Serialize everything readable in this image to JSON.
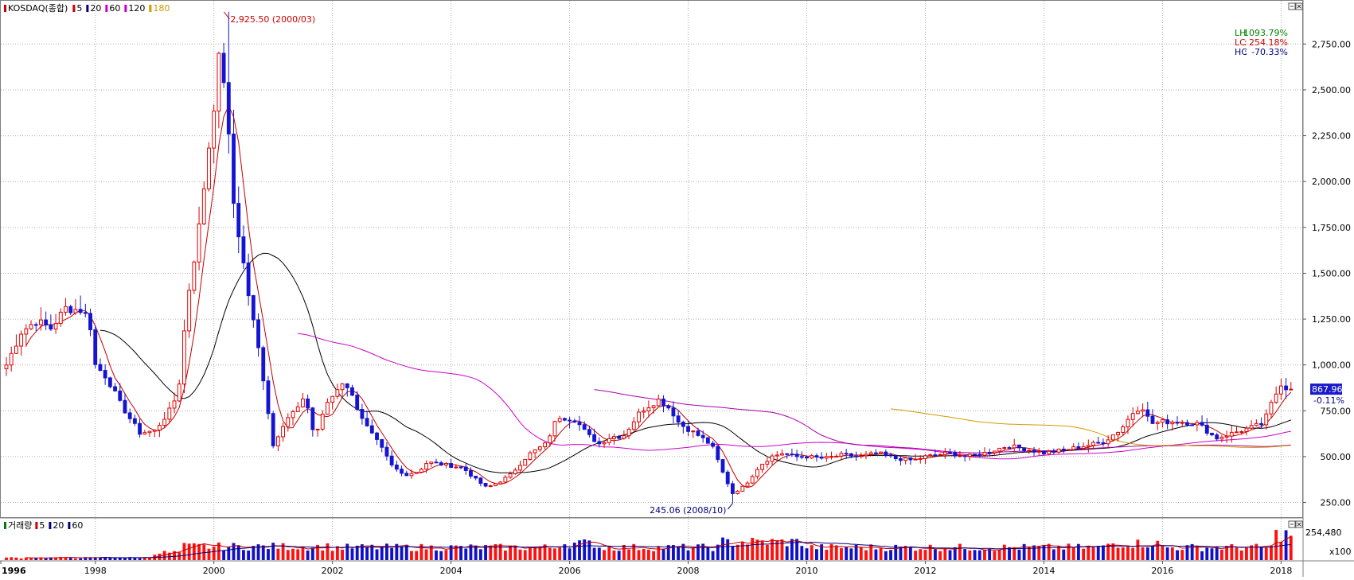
{
  "chart_data": [
    {
      "type": "candlestick",
      "index_name": "KOSDAQ(종합)",
      "legend": [
        {
          "label": "KOSDAQ(종합)",
          "color": "#cc0000"
        },
        {
          "label": "5",
          "color": "#cc0000"
        },
        {
          "label": "20",
          "color": "#000080"
        },
        {
          "label": "60",
          "color": "#cc00cc"
        },
        {
          "label": "120",
          "color": "#cc00cc"
        },
        {
          "label": "180",
          "color": "#cc9900"
        }
      ],
      "ylim": [
        170,
        2990
      ],
      "y_ticks": [
        250,
        500,
        750,
        1000,
        1250,
        1500,
        1750,
        2000,
        2250,
        2500,
        2750
      ],
      "y_tick_labels": [
        "250.00",
        "500.00",
        "750.00",
        "1,000.00",
        "1,250.00",
        "1,500.00",
        "1,750.00",
        "2,000.00",
        "2,250.00",
        "2,500.00",
        "2,750.00"
      ],
      "x_range": [
        1996.5,
        2018.25
      ],
      "x_ticks": [
        1996,
        1998,
        2000,
        2002,
        2004,
        2006,
        2008,
        2010,
        2012,
        2014,
        2016,
        2018
      ],
      "x_tick_labels": [
        "1996",
        "1998",
        "2000",
        "2002",
        "2004",
        "2006",
        "2008",
        "2010",
        "2012",
        "2014",
        "2016",
        "2018"
      ],
      "high_annotation": {
        "text": "2,925.50 (2000/03)",
        "x": 2000.17,
        "value": 2925.5
      },
      "low_annotation": {
        "text": "245.06 (2008/10)",
        "x": 2008.75,
        "value": 245.06
      },
      "stats": [
        {
          "label": "LH",
          "value": "1093.79%",
          "color": "#008000"
        },
        {
          "label": "LC",
          "value": "254.18%",
          "color": "#cc0000"
        },
        {
          "label": "HC",
          "value": "-70.33%",
          "color": "#000080"
        }
      ],
      "current_price": "867.96",
      "current_change": "-0.11%",
      "close_anchors": [
        [
          1996.5,
          1000
        ],
        [
          1996.75,
          1180
        ],
        [
          1997.0,
          1240
        ],
        [
          1997.25,
          1200
        ],
        [
          1997.5,
          1310
        ],
        [
          1997.75,
          1300
        ],
        [
          1997.9,
          1250
        ],
        [
          1998.0,
          1000
        ],
        [
          1998.2,
          930
        ],
        [
          1998.4,
          800
        ],
        [
          1998.6,
          700
        ],
        [
          1998.75,
          630
        ],
        [
          1999.0,
          640
        ],
        [
          1999.25,
          750
        ],
        [
          1999.4,
          850
        ],
        [
          1999.55,
          1350
        ],
        [
          1999.75,
          1750
        ],
        [
          1999.9,
          2150
        ],
        [
          2000.1,
          2700
        ],
        [
          2000.2,
          2500
        ],
        [
          2000.3,
          1950
        ],
        [
          2000.45,
          1650
        ],
        [
          2000.6,
          1350
        ],
        [
          2000.8,
          1000
        ],
        [
          2001.0,
          560
        ],
        [
          2001.2,
          700
        ],
        [
          2001.4,
          760
        ],
        [
          2001.55,
          820
        ],
        [
          2001.7,
          600
        ],
        [
          2001.85,
          750
        ],
        [
          2002.0,
          830
        ],
        [
          2002.2,
          920
        ],
        [
          2002.4,
          780
        ],
        [
          2002.6,
          650
        ],
        [
          2002.8,
          560
        ],
        [
          2003.0,
          450
        ],
        [
          2003.2,
          400
        ],
        [
          2003.45,
          420
        ],
        [
          2003.6,
          470
        ],
        [
          2003.8,
          460
        ],
        [
          2004.0,
          450
        ],
        [
          2004.2,
          440
        ],
        [
          2004.4,
          380
        ],
        [
          2004.6,
          330
        ],
        [
          2004.8,
          360
        ],
        [
          2005.0,
          400
        ],
        [
          2005.3,
          510
        ],
        [
          2005.6,
          570
        ],
        [
          2005.8,
          720
        ],
        [
          2006.1,
          700
        ],
        [
          2006.3,
          620
        ],
        [
          2006.5,
          570
        ],
        [
          2006.7,
          610
        ],
        [
          2006.9,
          610
        ],
        [
          2007.2,
          750
        ],
        [
          2007.5,
          810
        ],
        [
          2007.7,
          760
        ],
        [
          2007.85,
          680
        ],
        [
          2008.0,
          650
        ],
        [
          2008.2,
          610
        ],
        [
          2008.4,
          560
        ],
        [
          2008.6,
          400
        ],
        [
          2008.75,
          300
        ],
        [
          2008.95,
          340
        ],
        [
          2009.2,
          450
        ],
        [
          2009.4,
          500
        ],
        [
          2009.6,
          520
        ],
        [
          2009.8,
          500
        ],
        [
          2010.0,
          500
        ],
        [
          2010.3,
          490
        ],
        [
          2010.6,
          510
        ],
        [
          2010.9,
          500
        ],
        [
          2011.2,
          520
        ],
        [
          2011.5,
          490
        ],
        [
          2011.8,
          480
        ],
        [
          2012.0,
          500
        ],
        [
          2012.4,
          520
        ],
        [
          2012.7,
          500
        ],
        [
          2013.0,
          520
        ],
        [
          2013.4,
          560
        ],
        [
          2013.7,
          540
        ],
        [
          2014.0,
          520
        ],
        [
          2014.4,
          540
        ],
        [
          2014.7,
          560
        ],
        [
          2015.0,
          580
        ],
        [
          2015.3,
          650
        ],
        [
          2015.5,
          740
        ],
        [
          2015.65,
          780
        ],
        [
          2015.8,
          680
        ],
        [
          2016.0,
          690
        ],
        [
          2016.3,
          690
        ],
        [
          2016.6,
          680
        ],
        [
          2016.9,
          600
        ],
        [
          2017.1,
          620
        ],
        [
          2017.4,
          650
        ],
        [
          2017.7,
          680
        ],
        [
          2017.85,
          800
        ],
        [
          2018.0,
          900
        ],
        [
          2018.1,
          870
        ],
        [
          2018.2,
          868
        ]
      ],
      "volume": {
        "label": "거래량",
        "legend": [
          {
            "label": "거래량",
            "color": "#008000"
          },
          {
            "label": "5",
            "color": "#cc0000"
          },
          {
            "label": "20",
            "color": "#000080"
          },
          {
            "label": "60",
            "color": "#000080"
          }
        ],
        "max_label": "254,480",
        "unit_label": "x100"
      }
    }
  ]
}
